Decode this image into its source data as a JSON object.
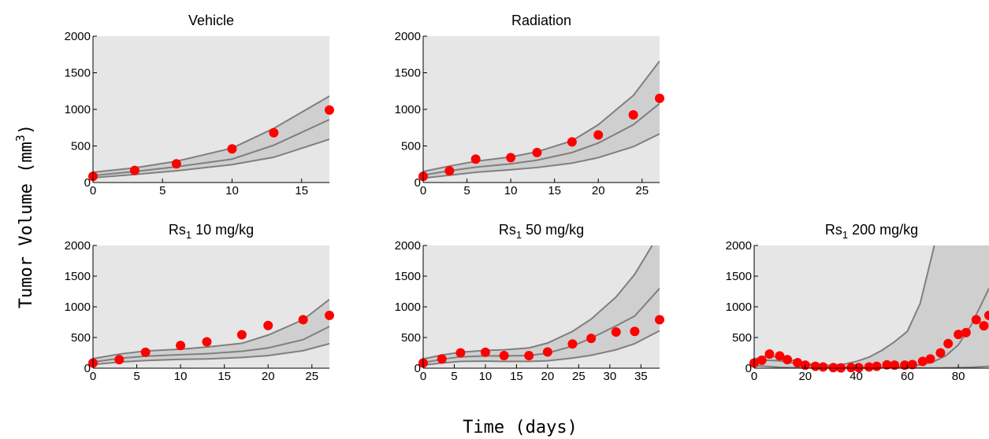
{
  "xlabel": "Time (days)",
  "ylabel": "Tumor Volume (mm",
  "ylabel_sup": "3",
  "ylabel_close": ")",
  "chart_data": [
    {
      "type": "line",
      "title": "Vehicle",
      "xlim": [
        0,
        17
      ],
      "ylim": [
        0,
        2000
      ],
      "x_ticks": [
        0,
        5,
        10,
        15
      ],
      "y_ticks": [
        0,
        500,
        1000,
        1500,
        2000
      ],
      "band_x": [
        0,
        3,
        6,
        10,
        13,
        17
      ],
      "band_lower": [
        65,
        110,
        160,
        245,
        345,
        590
      ],
      "band_median": [
        95,
        150,
        215,
        320,
        510,
        860
      ],
      "band_upper": [
        140,
        200,
        290,
        470,
        740,
        1180
      ],
      "observed": {
        "x": [
          0,
          3,
          6,
          10,
          13,
          17
        ],
        "y": [
          85,
          165,
          255,
          460,
          680,
          990
        ]
      }
    },
    {
      "type": "line",
      "title": "Radiation",
      "xlim": [
        0,
        27
      ],
      "ylim": [
        0,
        2000
      ],
      "x_ticks": [
        0,
        5,
        10,
        15,
        20,
        25
      ],
      "y_ticks": [
        0,
        500,
        1000,
        1500,
        2000
      ],
      "band_x": [
        0,
        3,
        6,
        10,
        13,
        17,
        20,
        24,
        27
      ],
      "band_lower": [
        60,
        100,
        140,
        175,
        205,
        265,
        340,
        490,
        665
      ],
      "band_median": [
        100,
        160,
        210,
        255,
        305,
        410,
        540,
        790,
        1080
      ],
      "band_upper": [
        150,
        225,
        290,
        350,
        420,
        570,
        790,
        1190,
        1660
      ],
      "observed": {
        "x": [
          0,
          3,
          6,
          10,
          13,
          17,
          20,
          24,
          27
        ],
        "y": [
          85,
          160,
          320,
          340,
          410,
          555,
          650,
          925,
          1150
        ]
      }
    },
    {
      "type": "line",
      "title": "Rs",
      "title_sub": "1",
      "title_rest": " 10 mg/kg",
      "xlim": [
        0,
        27
      ],
      "ylim": [
        0,
        2000
      ],
      "x_ticks": [
        0,
        5,
        10,
        15,
        20,
        25
      ],
      "y_ticks": [
        0,
        500,
        1000,
        1500,
        2000
      ],
      "band_x": [
        0,
        3,
        6,
        10,
        13,
        17,
        20,
        24,
        27
      ],
      "band_lower": [
        60,
        100,
        125,
        145,
        150,
        175,
        205,
        285,
        400
      ],
      "band_median": [
        100,
        160,
        195,
        220,
        235,
        275,
        330,
        465,
        680
      ],
      "band_upper": [
        155,
        230,
        280,
        310,
        345,
        405,
        540,
        790,
        1120
      ],
      "observed": {
        "x": [
          0,
          3,
          6,
          10,
          13,
          17,
          20,
          24,
          27
        ],
        "y": [
          85,
          140,
          260,
          370,
          430,
          545,
          695,
          790,
          860
        ]
      }
    },
    {
      "type": "line",
      "title": "Rs",
      "title_sub": "1",
      "title_rest": " 50 mg/kg",
      "xlim": [
        0,
        38
      ],
      "ylim": [
        0,
        2000
      ],
      "x_ticks": [
        0,
        5,
        10,
        15,
        20,
        25,
        30,
        35
      ],
      "y_ticks": [
        0,
        500,
        1000,
        1500,
        2000
      ],
      "band_x": [
        0,
        3,
        6,
        10,
        13,
        17,
        20,
        24,
        27,
        31,
        34,
        38
      ],
      "band_lower": [
        50,
        85,
        110,
        115,
        110,
        110,
        120,
        165,
        210,
        300,
        400,
        610
      ],
      "band_median": [
        90,
        145,
        185,
        200,
        200,
        205,
        245,
        360,
        490,
        690,
        850,
        1300
      ],
      "band_upper": [
        150,
        215,
        260,
        290,
        300,
        330,
        410,
        600,
        800,
        1160,
        1530,
        2200
      ],
      "observed": {
        "x": [
          0,
          3,
          6,
          10,
          13,
          17,
          20,
          24,
          27,
          31,
          34,
          38
        ],
        "y": [
          85,
          150,
          250,
          260,
          205,
          205,
          265,
          395,
          485,
          590,
          600,
          790
        ]
      }
    },
    {
      "type": "line",
      "title": "Rs",
      "title_sub": "1",
      "title_rest": " 200 mg/kg",
      "xlim": [
        0,
        92
      ],
      "ylim": [
        0,
        2000
      ],
      "x_ticks": [
        0,
        20,
        40,
        60,
        80
      ],
      "y_ticks": [
        0,
        500,
        1000,
        1500,
        2000
      ],
      "band_x": [
        0,
        5,
        10,
        15,
        20,
        25,
        30,
        35,
        40,
        45,
        50,
        55,
        60,
        65,
        70,
        75,
        80,
        85,
        92
      ],
      "band_lower": [
        40,
        30,
        15,
        8,
        4,
        2,
        1,
        1,
        1,
        1,
        1,
        1,
        2,
        3,
        4,
        6,
        9,
        14,
        30
      ],
      "band_median": [
        90,
        130,
        120,
        90,
        55,
        30,
        18,
        12,
        10,
        10,
        12,
        18,
        30,
        55,
        100,
        200,
        380,
        700,
        1300
      ],
      "band_upper": [
        150,
        200,
        180,
        130,
        80,
        50,
        45,
        65,
        110,
        180,
        290,
        430,
        600,
        1050,
        1900,
        2800,
        3500,
        4000,
        4500
      ],
      "observed": {
        "x": [
          0,
          3,
          6,
          10,
          13,
          17,
          20,
          24,
          27,
          31,
          34,
          38,
          41,
          45,
          48,
          52,
          55,
          59,
          62,
          66,
          69,
          73,
          76,
          80,
          83,
          87,
          90,
          92
        ],
        "y": [
          85,
          130,
          230,
          200,
          140,
          90,
          50,
          30,
          20,
          10,
          5,
          10,
          10,
          20,
          30,
          55,
          50,
          50,
          60,
          110,
          150,
          250,
          400,
          550,
          580,
          790,
          690,
          860
        ]
      }
    }
  ]
}
